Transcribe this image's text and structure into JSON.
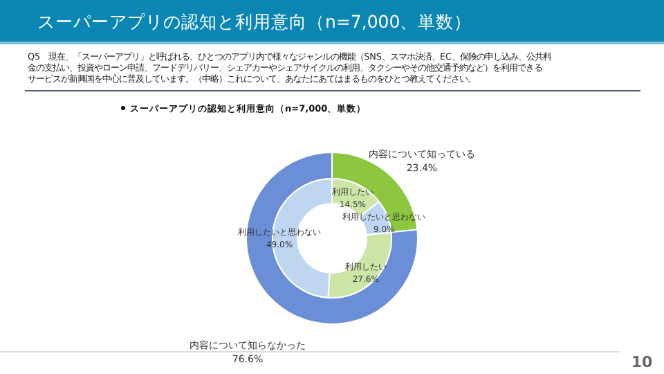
{
  "chart_data": [
    {
      "type": "donut",
      "title": "スーパーアプリの認知と利用意向（n=7,000、単数）",
      "subtitle": "Q5　現在、「スーパーアプリ」と呼ばれる、ひとつのアプリ内で様々なジャンルの機能（SNS、スマホ決済、EC、保険の申し込み、公共料金の支払い、投資やローン申請、フードデリバリー、シェアカーやシェアサイクルの利用、タクシーやその他交通予約など）を利用できるサービスが新興国を中心に普及しています。（中略）これについて、あなたにあてはまるものをひとつ教えてください。",
      "annotations": [
        "スーパーアプリの認知と利用意向（n=7,000、単数）",
        "10"
      ],
      "categories": [
        "内容について知っている",
        "内容について知らなかった"
      ],
      "values": [
        23.4,
        76.6
      ],
      "colors": [
        "#8dc63f",
        "#6a8fd6"
      ],
      "value_labels": [
        "23.4%",
        "76.6%"
      ]
    },
    {
      "type": "donut",
      "categories": [
        "利用したい",
        "利用したいと思わない",
        "利用したい",
        "利用したいと思わない"
      ],
      "values": [
        14.5,
        9.0,
        27.6,
        49.0
      ],
      "colors": [
        "#cde6a8",
        "#bed6f0",
        "#cde6a8",
        "#bed6f0"
      ],
      "value_labels": [
        "14.5%",
        "9.0%",
        "27.6%",
        "49.0%"
      ]
    }
  ]
}
